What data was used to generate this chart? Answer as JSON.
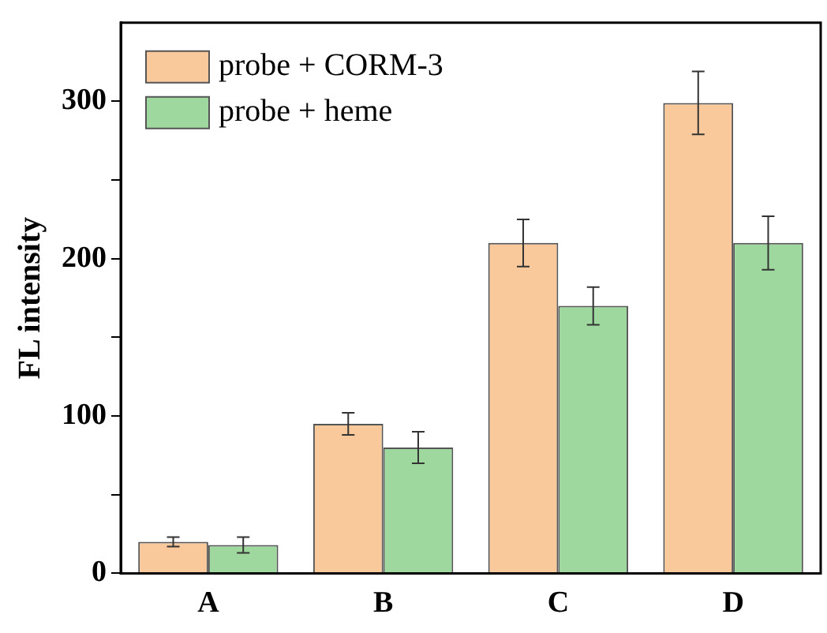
{
  "chart_data": {
    "type": "bar",
    "ylabel": "FL intensity",
    "categories": [
      "A",
      "B",
      "C",
      "D"
    ],
    "series": [
      {
        "name": "probe + CORM-3",
        "color": "#f9c89b",
        "values": [
          20,
          95,
          210,
          299
        ],
        "errors": [
          3,
          7,
          15,
          20
        ]
      },
      {
        "name": "probe + heme",
        "color": "#9fd89f",
        "values": [
          18,
          80,
          170,
          210
        ],
        "errors": [
          5,
          10,
          12,
          17
        ]
      }
    ],
    "ylim": [
      0,
      350
    ],
    "yticks": [
      0,
      {
        "value": 50,
        "label": null
      },
      100,
      {
        "value": 150,
        "label": null
      },
      200,
      {
        "value": 250,
        "label": null
      },
      300
    ],
    "grid": false,
    "legend": "top left"
  }
}
